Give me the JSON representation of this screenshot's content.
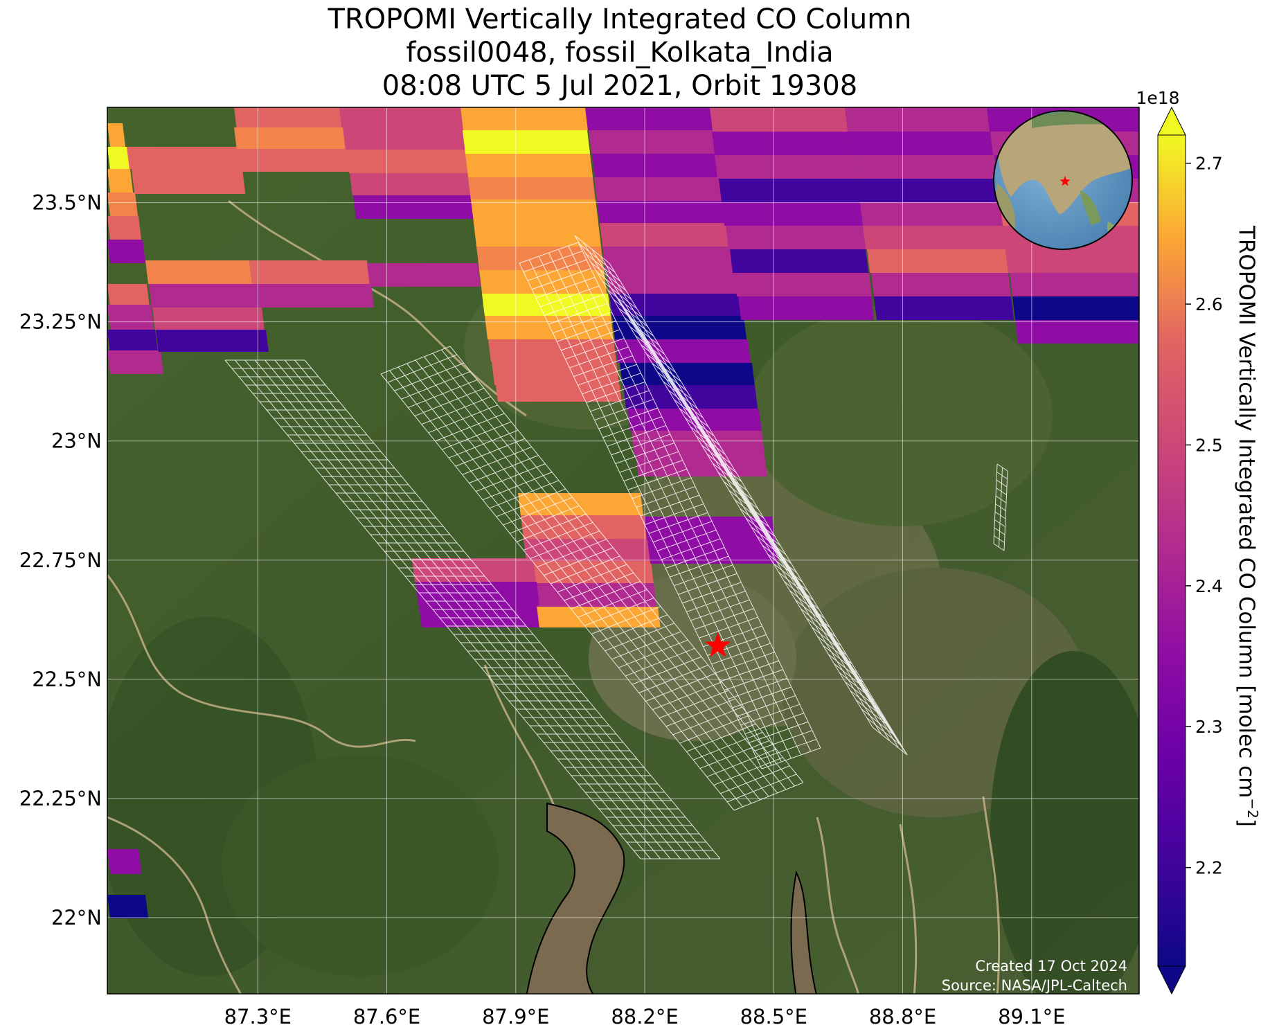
{
  "title": {
    "line1": "TROPOMI Vertically Integrated CO Column",
    "line2": "fossil0048, fossil_Kolkata_India",
    "line3": "08:08 UTC 5 Jul 2021, Orbit 19308"
  },
  "map": {
    "lon_range": [
      86.95,
      89.35
    ],
    "lat_range": [
      21.84,
      23.7
    ],
    "background": "satellite imagery (green vegetation, tan river deltas)",
    "target_marker": {
      "lon": 88.37,
      "lat": 22.57,
      "color": "#ff0000",
      "icon": "star-icon"
    },
    "gridlines": true,
    "lon_ticks": [
      {
        "value": 87.3,
        "label": "87.3°E"
      },
      {
        "value": 87.6,
        "label": "87.6°E"
      },
      {
        "value": 87.9,
        "label": "87.9°E"
      },
      {
        "value": 88.2,
        "label": "88.2°E"
      },
      {
        "value": 88.5,
        "label": "88.5°E"
      },
      {
        "value": 88.8,
        "label": "88.8°E"
      },
      {
        "value": 89.1,
        "label": "89.1°E"
      }
    ],
    "lat_ticks": [
      {
        "value": 23.5,
        "label": "23.5°N"
      },
      {
        "value": 23.25,
        "label": "23.25°N"
      },
      {
        "value": 23.0,
        "label": "23°N"
      },
      {
        "value": 22.75,
        "label": "22.75°N"
      },
      {
        "value": 22.5,
        "label": "22.5°N"
      },
      {
        "value": 22.25,
        "label": "22.25°N"
      },
      {
        "value": 22.0,
        "label": "22°N"
      }
    ],
    "footer": {
      "created": "Created 17 Oct 2024",
      "source": "Source: NASA/JPL-Caltech"
    },
    "inset_globe": {
      "icon": "globe-icon",
      "marker_color": "#ff0000"
    }
  },
  "colorbar": {
    "label": "TROPOMI Vertically Integrated CO Column [molec cm",
    "label_exponent": "−2",
    "label_close": "]",
    "multiplier": "1e18",
    "colormap": "plasma",
    "range": [
      2.13,
      2.72
    ],
    "ticks": [
      {
        "value": 2.2,
        "label": "2.2"
      },
      {
        "value": 2.3,
        "label": "2.3"
      },
      {
        "value": 2.4,
        "label": "2.4"
      },
      {
        "value": 2.5,
        "label": "2.5"
      },
      {
        "value": 2.6,
        "label": "2.6"
      },
      {
        "value": 2.7,
        "label": "2.7"
      }
    ]
  },
  "colors": {
    "dark_blue": "#0d0887",
    "blue_purple": "#41049d",
    "purple": "#8f0da4",
    "magenta": "#b12a90",
    "pink": "#cc4778",
    "salmon": "#e16462",
    "orange": "#f2844b",
    "light_orange": "#fca636",
    "yellow": "#f0f921"
  }
}
